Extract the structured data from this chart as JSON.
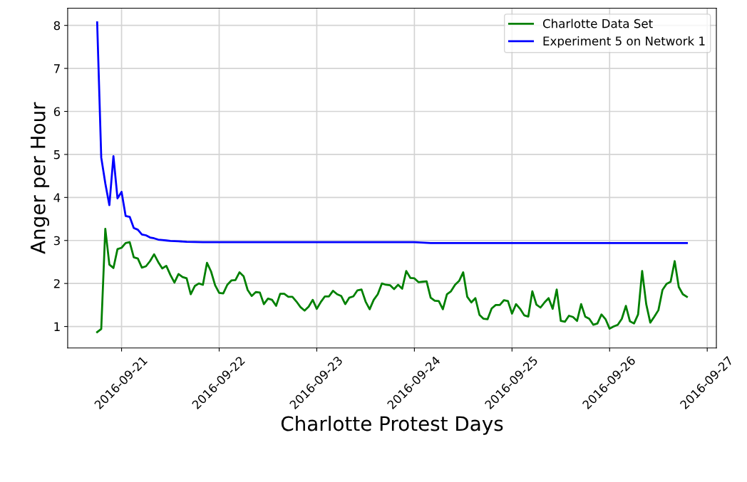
{
  "chart_data": {
    "type": "line",
    "xlabel": "Charlotte Protest Days",
    "ylabel": "Anger per Hour",
    "xlim": [
      "2016-09-20T10:45",
      "2016-09-27T02:15"
    ],
    "ylim": [
      0.5,
      8.4
    ],
    "xticks": [
      "2016-09-21",
      "2016-09-22",
      "2016-09-23",
      "2016-09-24",
      "2016-09-25",
      "2016-09-26",
      "2016-09-27"
    ],
    "yticks": [
      1,
      2,
      3,
      4,
      5,
      6,
      7,
      8
    ],
    "grid": true,
    "legend": "top right",
    "marker": "none",
    "line_style": "solid",
    "series": [
      {
        "name": "Charlotte Data Set",
        "color": "#008000",
        "x": [
          "2016-09-20T18:00",
          "2016-09-20T19:00",
          "2016-09-20T20:00",
          "2016-09-20T21:00",
          "2016-09-20T22:00",
          "2016-09-20T23:00",
          "2016-09-21T00:00",
          "2016-09-21T01:00",
          "2016-09-21T02:00",
          "2016-09-21T03:00",
          "2016-09-21T04:00",
          "2016-09-21T05:00",
          "2016-09-21T06:00",
          "2016-09-21T07:00",
          "2016-09-21T08:00",
          "2016-09-21T09:00",
          "2016-09-21T10:00",
          "2016-09-21T11:00",
          "2016-09-21T12:00",
          "2016-09-21T13:00",
          "2016-09-21T14:00",
          "2016-09-21T15:00",
          "2016-09-21T16:00",
          "2016-09-21T17:00",
          "2016-09-21T18:00",
          "2016-09-21T19:00",
          "2016-09-21T20:00",
          "2016-09-21T21:00",
          "2016-09-21T22:00",
          "2016-09-21T23:00",
          "2016-09-22T00:00",
          "2016-09-22T01:00",
          "2016-09-22T02:00",
          "2016-09-22T03:00",
          "2016-09-22T04:00",
          "2016-09-22T05:00",
          "2016-09-22T06:00",
          "2016-09-22T07:00",
          "2016-09-22T08:00",
          "2016-09-22T09:00",
          "2016-09-22T10:00",
          "2016-09-22T11:00",
          "2016-09-22T12:00",
          "2016-09-22T13:00",
          "2016-09-22T14:00",
          "2016-09-22T15:00",
          "2016-09-22T16:00",
          "2016-09-22T17:00",
          "2016-09-22T18:00",
          "2016-09-22T19:00",
          "2016-09-22T20:00",
          "2016-09-22T21:00",
          "2016-09-22T22:00",
          "2016-09-22T23:00",
          "2016-09-23T00:00",
          "2016-09-23T01:00",
          "2016-09-23T02:00",
          "2016-09-23T03:00",
          "2016-09-23T04:00",
          "2016-09-23T05:00",
          "2016-09-23T06:00",
          "2016-09-23T07:00",
          "2016-09-23T08:00",
          "2016-09-23T09:00",
          "2016-09-23T10:00",
          "2016-09-23T11:00",
          "2016-09-23T12:00",
          "2016-09-23T13:00",
          "2016-09-23T14:00",
          "2016-09-23T15:00",
          "2016-09-23T16:00",
          "2016-09-23T17:00",
          "2016-09-23T18:00",
          "2016-09-23T19:00",
          "2016-09-23T20:00",
          "2016-09-23T21:00",
          "2016-09-23T22:00",
          "2016-09-23T23:00",
          "2016-09-24T00:00",
          "2016-09-24T01:00",
          "2016-09-24T02:00",
          "2016-09-24T03:00",
          "2016-09-24T04:00",
          "2016-09-24T05:00",
          "2016-09-24T06:00",
          "2016-09-24T07:00",
          "2016-09-24T08:00",
          "2016-09-24T09:00",
          "2016-09-24T10:00",
          "2016-09-24T11:00",
          "2016-09-24T12:00",
          "2016-09-24T13:00",
          "2016-09-24T14:00",
          "2016-09-24T15:00",
          "2016-09-24T16:00",
          "2016-09-24T17:00",
          "2016-09-24T18:00",
          "2016-09-24T19:00",
          "2016-09-24T20:00",
          "2016-09-24T21:00",
          "2016-09-24T22:00",
          "2016-09-24T23:00",
          "2016-09-25T00:00",
          "2016-09-25T01:00",
          "2016-09-25T02:00",
          "2016-09-25T03:00",
          "2016-09-25T04:00",
          "2016-09-25T05:00",
          "2016-09-25T06:00",
          "2016-09-25T07:00",
          "2016-09-25T08:00",
          "2016-09-25T09:00",
          "2016-09-25T10:00",
          "2016-09-25T11:00",
          "2016-09-25T12:00",
          "2016-09-25T13:00",
          "2016-09-25T14:00",
          "2016-09-25T15:00",
          "2016-09-25T16:00",
          "2016-09-25T17:00",
          "2016-09-25T18:00",
          "2016-09-25T19:00",
          "2016-09-25T20:00",
          "2016-09-25T21:00",
          "2016-09-25T22:00",
          "2016-09-25T23:00",
          "2016-09-26T00:00",
          "2016-09-26T01:00",
          "2016-09-26T02:00",
          "2016-09-26T03:00",
          "2016-09-26T04:00",
          "2016-09-26T05:00",
          "2016-09-26T06:00",
          "2016-09-26T07:00",
          "2016-09-26T08:00",
          "2016-09-26T09:00",
          "2016-09-26T10:00",
          "2016-09-26T11:00",
          "2016-09-26T12:00",
          "2016-09-26T13:00",
          "2016-09-26T14:00",
          "2016-09-26T15:00",
          "2016-09-26T16:00",
          "2016-09-26T17:00",
          "2016-09-26T18:00",
          "2016-09-26T19:00"
        ],
        "values": [
          0.87,
          0.94,
          3.27,
          2.44,
          2.36,
          2.8,
          2.83,
          2.94,
          2.96,
          2.61,
          2.58,
          2.37,
          2.4,
          2.52,
          2.68,
          2.5,
          2.35,
          2.41,
          2.2,
          2.02,
          2.22,
          2.15,
          2.12,
          1.75,
          1.94,
          2.0,
          1.97,
          2.48,
          2.28,
          1.96,
          1.78,
          1.77,
          1.97,
          2.07,
          2.08,
          2.26,
          2.17,
          1.85,
          1.71,
          1.8,
          1.79,
          1.52,
          1.65,
          1.62,
          1.48,
          1.76,
          1.76,
          1.69,
          1.69,
          1.58,
          1.45,
          1.37,
          1.46,
          1.62,
          1.41,
          1.57,
          1.7,
          1.7,
          1.83,
          1.75,
          1.71,
          1.52,
          1.67,
          1.7,
          1.84,
          1.86,
          1.58,
          1.4,
          1.62,
          1.75,
          2.0,
          1.97,
          1.96,
          1.87,
          1.97,
          1.88,
          2.29,
          2.13,
          2.12,
          2.03,
          2.04,
          2.05,
          1.67,
          1.6,
          1.59,
          1.4,
          1.75,
          1.82,
          1.97,
          2.06,
          2.26,
          1.69,
          1.56,
          1.66,
          1.27,
          1.18,
          1.17,
          1.42,
          1.5,
          1.5,
          1.61,
          1.59,
          1.3,
          1.52,
          1.41,
          1.26,
          1.23,
          1.82,
          1.51,
          1.44,
          1.56,
          1.66,
          1.41,
          1.86,
          1.13,
          1.11,
          1.25,
          1.22,
          1.13,
          1.52,
          1.23,
          1.18,
          1.04,
          1.07,
          1.28,
          1.17,
          0.95,
          1.0,
          1.04,
          1.18,
          1.48,
          1.12,
          1.07,
          1.28,
          2.29,
          1.52,
          1.09,
          1.23,
          1.38,
          1.85,
          1.99,
          2.04,
          2.52,
          1.92,
          1.75,
          1.69
        ]
      },
      {
        "name": "Experiment 5 on Network 1",
        "color": "#0000ff",
        "x": [
          "2016-09-20T18:00",
          "2016-09-20T19:00",
          "2016-09-20T20:00",
          "2016-09-20T21:00",
          "2016-09-20T22:00",
          "2016-09-20T23:00",
          "2016-09-21T00:00",
          "2016-09-21T01:00",
          "2016-09-21T02:00",
          "2016-09-21T03:00",
          "2016-09-21T04:00",
          "2016-09-21T05:00",
          "2016-09-21T06:00",
          "2016-09-21T07:00",
          "2016-09-21T08:00",
          "2016-09-21T09:00",
          "2016-09-21T10:00",
          "2016-09-21T11:00",
          "2016-09-21T12:00",
          "2016-09-21T14:00",
          "2016-09-21T16:00",
          "2016-09-21T20:00",
          "2016-09-24T00:00",
          "2016-09-24T04:00",
          "2016-09-26T19:00"
        ],
        "values": [
          8.07,
          4.93,
          4.33,
          3.82,
          4.96,
          3.98,
          4.13,
          3.57,
          3.55,
          3.29,
          3.25,
          3.14,
          3.12,
          3.07,
          3.05,
          3.02,
          3.01,
          3.0,
          2.99,
          2.98,
          2.97,
          2.96,
          2.96,
          2.94,
          2.94
        ]
      }
    ]
  }
}
